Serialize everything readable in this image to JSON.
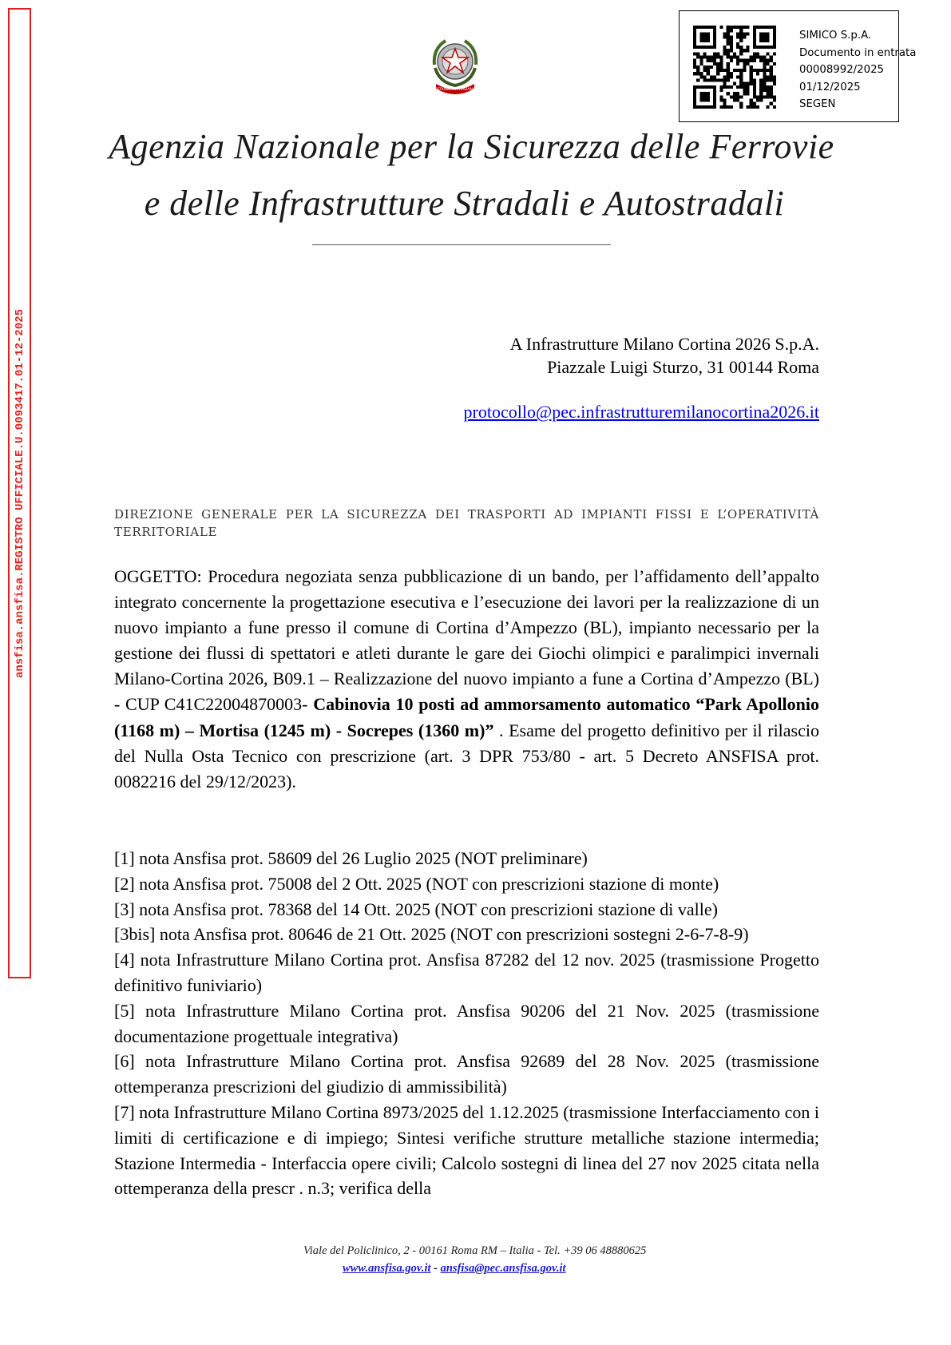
{
  "registry_stamp": "ansfisa.ansfisa.REGISTRO UFFICIALE.U.0093417.01-12-2025",
  "protocol_box": {
    "lines": [
      "SIMICO S.p.A.",
      "Documento in entrata",
      "00008992/2025",
      "01/12/2025",
      "SEGEN"
    ]
  },
  "emblem_icon": "italian-republic-emblem-icon",
  "emblem_text": "REPUBBLICA ITALIANA",
  "header": {
    "agency_line_1": "Agenzia Nazionale per la Sicurezza delle Ferrovie",
    "agency_line_2": "e delle Infrastrutture Stradali e Autostradali"
  },
  "recipient": {
    "name": "A Infrastrutture Milano Cortina 2026 S.p.A.",
    "address": "Piazzale Luigi Sturzo, 31 00144 Roma",
    "email": "protocollo@pec.infrastrutturemilanocortina2026.it"
  },
  "directorate": "Direzione Generale per la Sicurezza dei Trasporti ad Impianti Fissi e l’Operatività Territoriale",
  "subject": {
    "part1": "OGGETTO: Procedura negoziata senza pubblicazione di un bando, per l’affidamento dell’appalto integrato concernente la progettazione esecutiva e l’esecuzione dei lavori per la realizzazione di un nuovo impianto a fune presso il comune di Cortina d’Ampezzo (BL), impianto necessario per la gestione dei flussi di spettatori e atleti durante le gare dei Giochi olimpici e paralimpici invernali Milano-Cortina 2026, B09.1 – Realizzazione del nuovo impianto a fune a Cortina d’Ampezzo (BL) - CUP C41C22004870003- ",
    "bold": "Cabinovia 10 posti ad ammorsamento automatico “Park Apollonio (1168 m) – Mortisa (1245 m) - Socrepes (1360 m)”",
    "part2": " . Esame del progetto definitivo per il rilascio del Nulla Osta Tecnico con prescrizione (art. 3 DPR 753/80 - art. 5 Decreto ANSFISA prot. 0082216 del 29/12/2023)."
  },
  "references": [
    "[1] nota Ansfisa prot. 58609 del 26 Luglio 2025 (NOT preliminare)",
    "[2] nota Ansfisa prot. 75008 del 2 Ott. 2025 (NOT con prescrizioni stazione di monte)",
    "[3] nota Ansfisa prot. 78368 del 14 Ott. 2025 (NOT con prescrizioni stazione di valle)",
    "[3bis] nota Ansfisa prot. 80646 de 21 Ott. 2025 (NOT con prescrizioni sostegni 2-6-7-8-9)",
    "[4] nota Infrastrutture Milano Cortina prot. Ansfisa 87282 del 12 nov. 2025 (trasmissione Progetto definitivo funiviario)",
    "[5] nota Infrastrutture Milano Cortina prot. Ansfisa 90206 del 21 Nov. 2025 (trasmissione documentazione progettuale integrativa)",
    "[6] nota Infrastrutture Milano Cortina prot. Ansfisa 92689 del 28 Nov. 2025 (trasmissione ottemperanza prescrizioni del giudizio di ammissibilità)",
    "[7] nota Infrastrutture Milano Cortina 8973/2025 del 1.12.2025 (trasmissione Interfacciamento con i limiti di certificazione e di impiego; Sintesi verifiche strutture metalliche stazione intermedia; Stazione Intermedia - Interfaccia opere civili; Calcolo sostegni di linea del 27 nov 2025 citata nella ottemperanza della prescr . n.3; verifica della"
  ],
  "footer": {
    "address": "Viale del Policlinico, 2 - 00161 Roma RM – Italia - Tel. +39 06 48880625",
    "website": "www.ansfisa.gov.it",
    "separator": " - ",
    "pec": "ansfisa@pec.ansfisa.gov.it"
  },
  "colors": {
    "stamp_red": "#e02020",
    "link_blue": "#0000ee"
  }
}
